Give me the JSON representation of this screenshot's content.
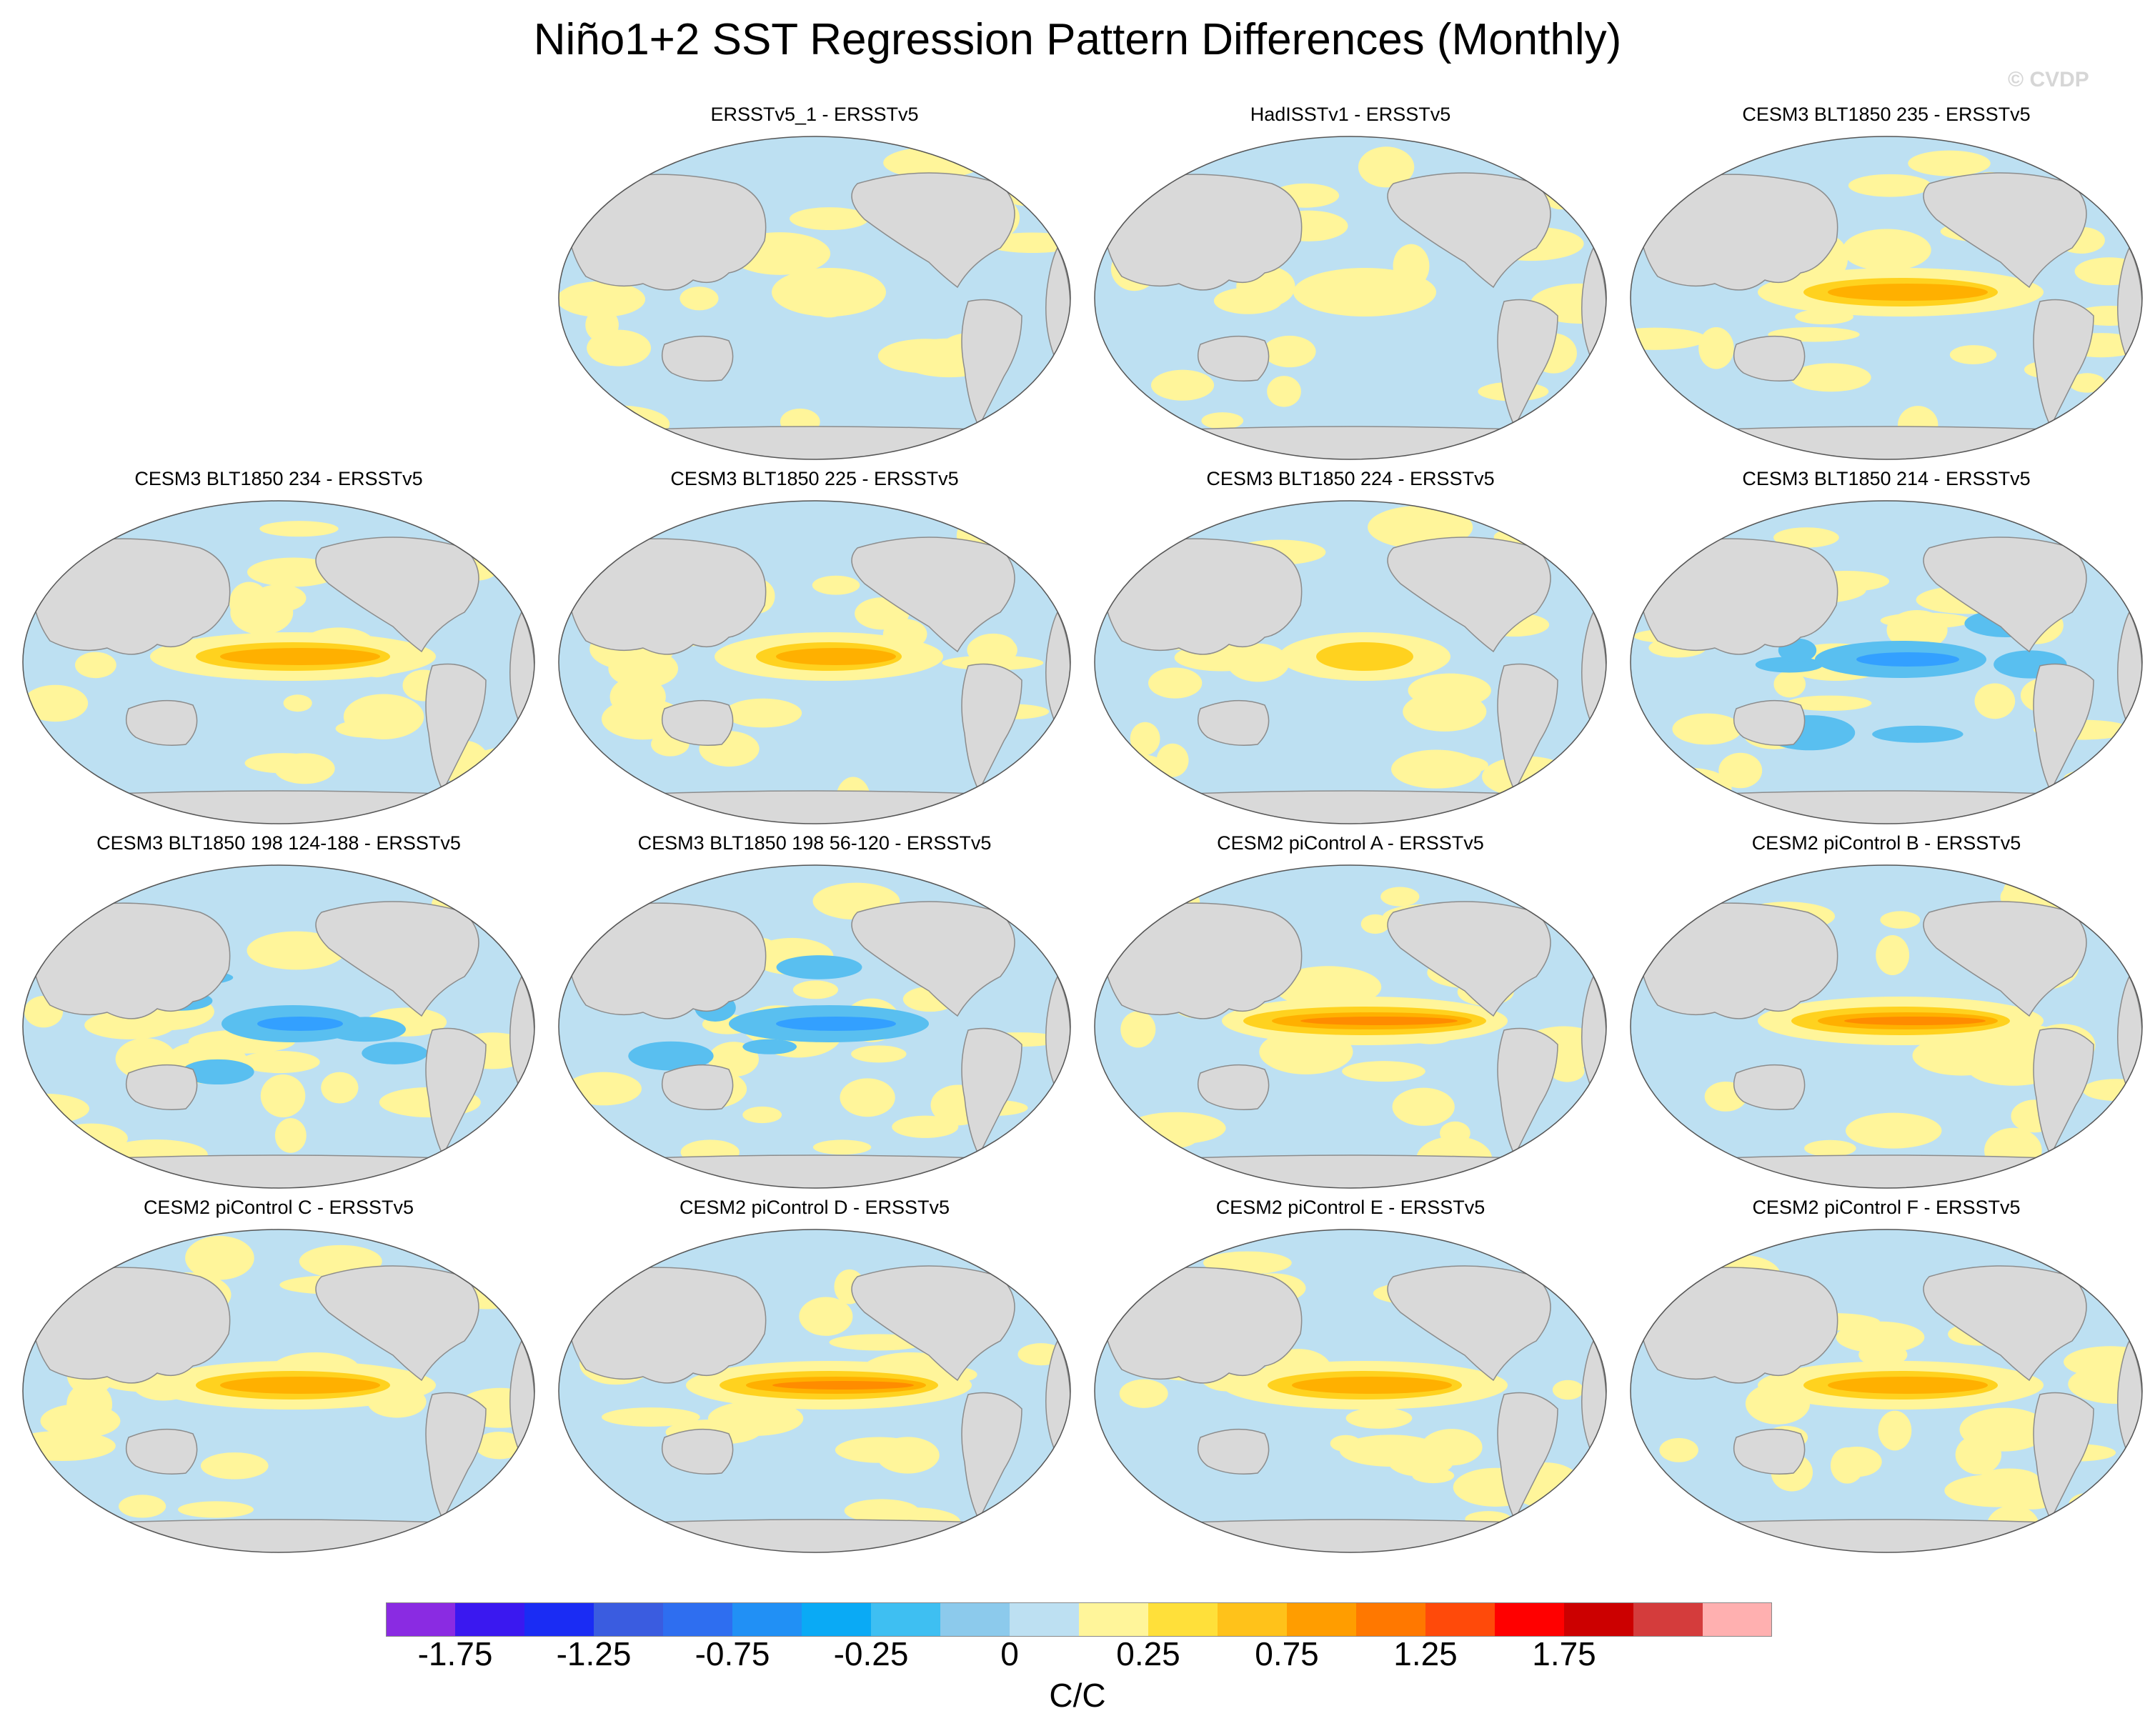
{
  "title": "Niño1+2 SST Regression Pattern Differences (Monthly)",
  "watermark": "© CVDP",
  "colors": {
    "land": "#d9d9d9",
    "coast": "#8c8c8c",
    "neg_light": "#bde0f2",
    "pos_light": "#fff59a",
    "pos_mid": "#ffd21f",
    "pos_strong": "#ffb000",
    "pos_stronger": "#ff8c00",
    "neg_mid": "#59bff0",
    "neg_strong": "#33a0ff"
  },
  "panels": [
    {
      "title": "ERSSTv5_1 - ERSSTv5",
      "enso": 0,
      "band": 0.2
    },
    {
      "title": "HadISSTv1 - ERSSTv5",
      "enso": 1,
      "band": 0.3
    },
    {
      "title": "CESM3 BLT1850 235 - ERSSTv5",
      "enso": 2,
      "band": 0.8
    },
    {
      "title": "CESM3 BLT1850 234 - ERSSTv5",
      "enso": 3,
      "band": 0.8
    },
    {
      "title": "CESM3 BLT1850 225 - ERSSTv5",
      "enso": 2,
      "band": 0.6
    },
    {
      "title": "CESM3 BLT1850 224 - ERSSTv5",
      "enso": 1,
      "band": 0.4
    },
    {
      "title": "CESM3 BLT1850 214 - ERSSTv5",
      "enso": -1,
      "band": -0.6
    },
    {
      "title": "CESM3 BLT1850 198 124-188 - ERSSTv5",
      "enso": -1,
      "band": -0.5
    },
    {
      "title": "CESM3 BLT1850 198 56-120 - ERSSTv5",
      "enso": -1,
      "band": -0.7
    },
    {
      "title": "CESM2 piControl A - ERSSTv5",
      "enso": 4,
      "band": 1.0
    },
    {
      "title": "CESM2 piControl B - ERSSTv5",
      "enso": 4,
      "band": 0.9
    },
    {
      "title": "CESM2 piControl C - ERSSTv5",
      "enso": 3,
      "band": 0.8
    },
    {
      "title": "CESM2 piControl D - ERSSTv5",
      "enso": 3,
      "band": 0.9
    },
    {
      "title": "CESM2 piControl E - ERSSTv5",
      "enso": 3,
      "band": 0.8
    },
    {
      "title": "CESM2 piControl F - ERSSTv5",
      "enso": 3,
      "band": 0.8
    }
  ],
  "colorbar": {
    "colors": [
      "#8a2be2",
      "#3a18f0",
      "#1a2cf4",
      "#3a5ce0",
      "#2e6ef0",
      "#2190f5",
      "#0aaaf5",
      "#3ebff2",
      "#8ccaec",
      "#bde0f2",
      "#fff59a",
      "#ffe03a",
      "#ffc21a",
      "#ff9d00",
      "#ff7800",
      "#ff4a0a",
      "#ff0000",
      "#cc0000",
      "#d43c3c",
      "#ffb0b0"
    ],
    "tick_labels": [
      "-1.75",
      "-1.25",
      "-0.75",
      "-0.25",
      "0",
      "0.25",
      "0.75",
      "1.25",
      "1.75"
    ],
    "units": "C/C"
  }
}
